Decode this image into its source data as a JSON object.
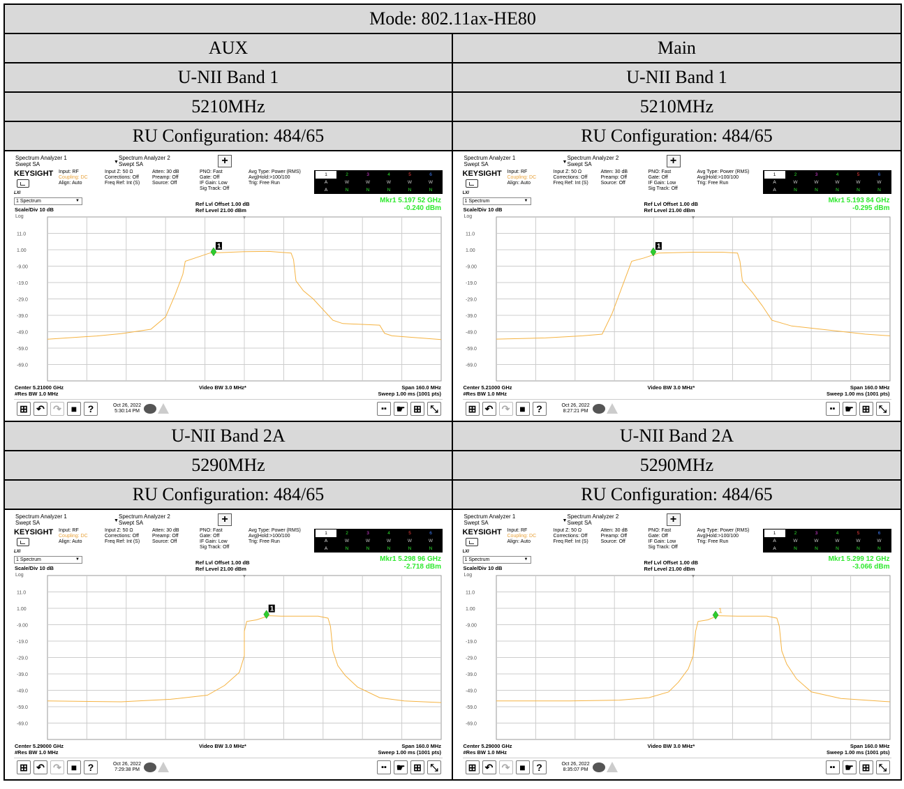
{
  "mode_title": "Mode: 802.11ax-HE80",
  "columns": [
    "AUX",
    "Main"
  ],
  "sections": [
    {
      "band": "U-NII Band 1",
      "freq": "5210MHz",
      "ru": "RU Configuration: 484/65",
      "shots": [
        {
          "mkr_freq": "Mkr1  5.197 52 GHz",
          "mkr_level": "-0.240 dBm",
          "center": "Center 5.21000 GHz",
          "date": "Oct 26, 2022",
          "time": "5:30:14 PM",
          "marker_label_style": "boxed",
          "marker_point": {
            "x_mhz": -12.5,
            "y_dbm": -0.24
          },
          "trace": [
            [
              -80,
              -53.6
            ],
            [
              -60,
              -51.6
            ],
            [
              -50,
              -50.2
            ],
            [
              -38,
              -47.5
            ],
            [
              -32,
              -40
            ],
            [
              -28,
              -26
            ],
            [
              -25,
              -14
            ],
            [
              -24,
              -6
            ],
            [
              -20,
              -4
            ],
            [
              -14,
              -1
            ],
            [
              0,
              -0.2
            ],
            [
              10,
              0
            ],
            [
              19,
              -1
            ],
            [
              20,
              -5
            ],
            [
              21,
              -18
            ],
            [
              24,
              -24
            ],
            [
              28,
              -29
            ],
            [
              36,
              -42
            ],
            [
              40,
              -44
            ],
            [
              55,
              -45
            ],
            [
              57,
              -50
            ],
            [
              60,
              -51.5
            ],
            [
              80,
              -53.8
            ]
          ]
        },
        {
          "mkr_freq": "Mkr1  5.193 84 GHz",
          "mkr_level": "-0.295 dBm",
          "center": "Center 5.21000 GHz",
          "date": "Oct 26, 2022",
          "time": "8:27:21 PM",
          "marker_label_style": "boxed",
          "marker_point": {
            "x_mhz": -16.2,
            "y_dbm": -0.3
          },
          "trace": [
            [
              -80,
              -53.5
            ],
            [
              -60,
              -52.8
            ],
            [
              -45,
              -51.5
            ],
            [
              -37,
              -50.5
            ],
            [
              -33,
              -38
            ],
            [
              -30,
              -26
            ],
            [
              -27,
              -14
            ],
            [
              -25,
              -6
            ],
            [
              -20,
              -4
            ],
            [
              -14,
              -1
            ],
            [
              0,
              -0.5
            ],
            [
              12,
              -0.5
            ],
            [
              18,
              -1
            ],
            [
              19,
              -6
            ],
            [
              20,
              -18
            ],
            [
              24,
              -25
            ],
            [
              28,
              -33
            ],
            [
              32,
              -42
            ],
            [
              40,
              -45.5
            ],
            [
              55,
              -48
            ],
            [
              70,
              -50.5
            ],
            [
              80,
              -51.5
            ]
          ]
        }
      ]
    },
    {
      "band": "U-NII Band 2A",
      "freq": "5290MHz",
      "ru": "RU Configuration: 484/65",
      "shots": [
        {
          "mkr_freq": "Mkr1  5.298 96 GHz",
          "mkr_level": "-2.718 dBm",
          "center": "Center 5.29000 GHz",
          "date": "Oct 26, 2022",
          "time": "7:29:38 PM",
          "marker_label_style": "boxed",
          "marker_point": {
            "x_mhz": 9.0,
            "y_dbm": -2.7
          },
          "trace": [
            [
              -80,
              -55.5
            ],
            [
              -50,
              -56
            ],
            [
              -30,
              -54.5
            ],
            [
              -15,
              -52
            ],
            [
              -8,
              -46
            ],
            [
              -2,
              -38
            ],
            [
              0,
              -28
            ],
            [
              0,
              -13
            ],
            [
              1,
              -7
            ],
            [
              5,
              -6
            ],
            [
              10,
              -3.5
            ],
            [
              15,
              -3.8
            ],
            [
              30,
              -3.8
            ],
            [
              34,
              -5
            ],
            [
              35,
              -10
            ],
            [
              36,
              -25
            ],
            [
              38,
              -34
            ],
            [
              41,
              -40
            ],
            [
              46,
              -47
            ],
            [
              55,
              -53.5
            ],
            [
              65,
              -55.5
            ],
            [
              80,
              -56.5
            ]
          ]
        },
        {
          "mkr_freq": "Mkr1  5.299 12 GHz",
          "mkr_level": "-3.066 dBm",
          "center": "Center 5.29000 GHz",
          "date": "Oct 26, 2022",
          "time": "8:35:07 PM",
          "marker_label_style": "plain",
          "marker_point": {
            "x_mhz": 9.1,
            "y_dbm": -3.1
          },
          "trace": [
            [
              -80,
              -55.5
            ],
            [
              -50,
              -55.5
            ],
            [
              -30,
              -55
            ],
            [
              -18,
              -53.5
            ],
            [
              -10,
              -50
            ],
            [
              -6,
              -44
            ],
            [
              -2,
              -36
            ],
            [
              0,
              -28
            ],
            [
              1,
              -13
            ],
            [
              2,
              -7
            ],
            [
              6,
              -6
            ],
            [
              10,
              -3.5
            ],
            [
              18,
              -3.8
            ],
            [
              30,
              -3.8
            ],
            [
              34,
              -5
            ],
            [
              35,
              -10
            ],
            [
              36,
              -25
            ],
            [
              38,
              -33
            ],
            [
              42,
              -42
            ],
            [
              48,
              -50
            ],
            [
              60,
              -54
            ],
            [
              80,
              -56
            ]
          ]
        }
      ]
    }
  ],
  "analyzer": {
    "tab1_title": "Spectrum Analyzer 1",
    "tab1_sub": "Swept SA",
    "tab2_title": "Spectrum Analyzer 2",
    "tab2_sub": "Swept SA",
    "plus": "+",
    "brand": "KEYSIGHT",
    "lxi": "LXI",
    "col1": [
      "Input: RF",
      "Coupling: DC",
      "Align: Auto"
    ],
    "col2": [
      "Input Z: 50 Ω",
      "Corrections: Off",
      "Freq Ref: Int (S)"
    ],
    "col3": [
      "Atten: 30 dB",
      "Preamp: Off",
      "Source: Off"
    ],
    "col4": [
      "PNO: Fast",
      "Gate: Off",
      "IF Gain: Low",
      "Sig Track: Off"
    ],
    "col5": [
      "Avg Type: Power (RMS)",
      "Avg|Hold:>100/100",
      "Trig: Free Run"
    ],
    "trace_numbers": [
      "1",
      "2",
      "3",
      "4",
      "5",
      "6"
    ],
    "trace_row2": [
      "A",
      "W",
      "W",
      "W",
      "W",
      "W"
    ],
    "trace_row3": [
      "A",
      "N",
      "N",
      "N",
      "N",
      "N"
    ],
    "trace_select": "1 Spectrum",
    "scale": "Scale/Div 10 dB",
    "log": "Log",
    "ref_offset": "Ref Lvl Offset 1.00 dB",
    "ref_level": "Ref Level 21.00 dBm",
    "y_ticks": [
      "11.0",
      "1.00",
      "-9.00",
      "-19.0",
      "-29.0",
      "-39.0",
      "-49.0",
      "-59.0",
      "-69.0"
    ],
    "res_bw": "#Res BW 1.0 MHz",
    "video_bw": "Video BW 3.0 MHz*",
    "span": "Span 160.0 MHz",
    "sweep": "Sweep 1.00 ms (1001 pts)",
    "marker_tag": "1",
    "trace_color": "#f5b342",
    "marker_color": "#2ecc2e"
  }
}
